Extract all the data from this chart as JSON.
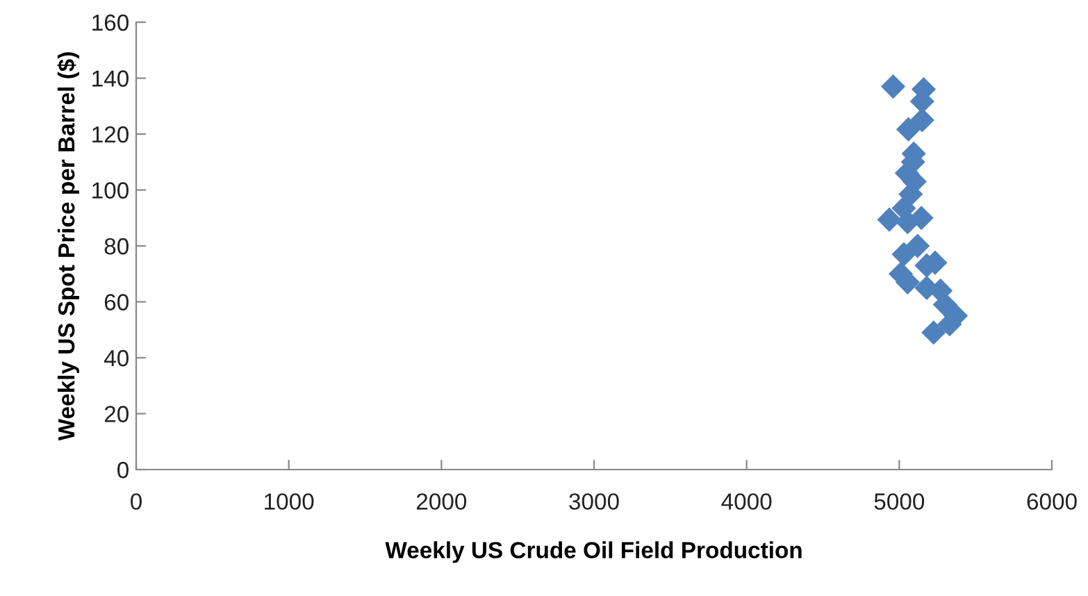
{
  "chart_data": {
    "type": "scatter",
    "xlabel": "Weekly US Crude Oil Field Production",
    "ylabel": "Weekly US Spot Price per Barrel ($)",
    "x": [
      4960,
      5160,
      5150,
      5060,
      5150,
      5095,
      5090,
      5050,
      5100,
      5075,
      5030,
      4935,
      5055,
      5145,
      5120,
      5030,
      5180,
      5235,
      5010,
      5055,
      5180,
      5270,
      5300,
      5370,
      5330,
      5225
    ],
    "series": [
      {
        "color": "#4f81bd",
        "values": [
          137,
          136,
          131.7,
          121.7,
          125,
          113,
          110,
          106,
          103,
          98.5,
          93.5,
          89.4,
          88.5,
          90,
          80,
          77,
          73,
          74,
          70,
          67,
          65,
          64,
          59,
          55,
          52,
          49
        ]
      }
    ],
    "marker": "diamond",
    "xlim": [
      0,
      6000
    ],
    "ylim": [
      0,
      160
    ],
    "xticks": [
      0,
      1000,
      2000,
      3000,
      4000,
      5000,
      6000
    ],
    "yticks": [
      0,
      20,
      40,
      60,
      80,
      100,
      120,
      140,
      160
    ],
    "grid": false,
    "legend": false
  }
}
